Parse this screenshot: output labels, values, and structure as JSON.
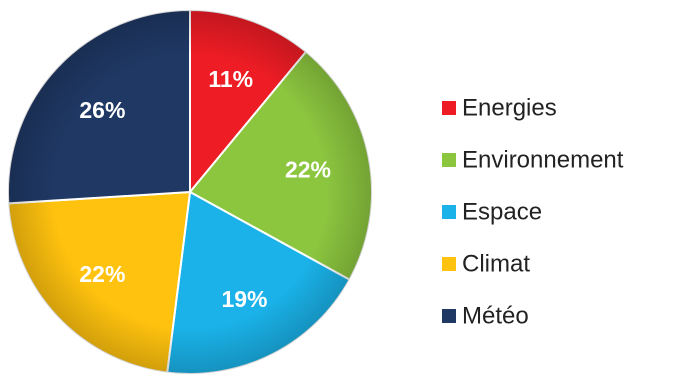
{
  "chart_data": {
    "type": "pie",
    "title": "",
    "legend_position": "right",
    "slices": [
      {
        "label": "Energies",
        "value": 11,
        "display": "11%",
        "color": "#ee1c25"
      },
      {
        "label": "Environnement",
        "value": 22,
        "display": "22%",
        "color": "#8cc63f"
      },
      {
        "label": "Espace",
        "value": 19,
        "display": "19%",
        "color": "#1ab2e8"
      },
      {
        "label": "Climat",
        "value": 22,
        "display": "22%",
        "color": "#ffc20e"
      },
      {
        "label": "Météo",
        "value": 26,
        "display": "26%",
        "color": "#1f3864"
      }
    ]
  }
}
